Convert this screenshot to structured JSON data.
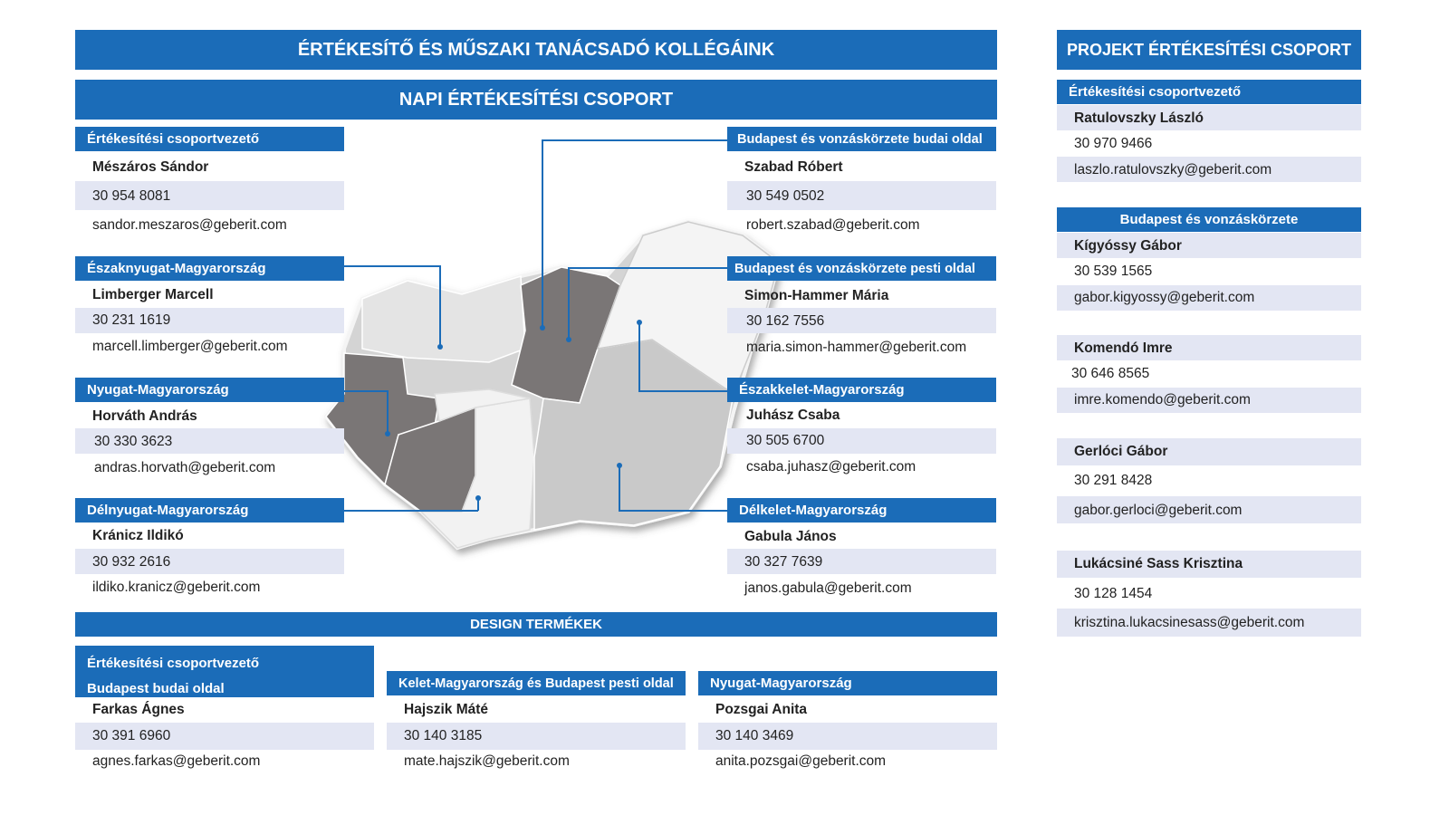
{
  "main_title": "ÉRTÉKESÍTŐ ÉS MŰSZAKI TANÁCSADÓ KOLLÉGÁINK",
  "daily": {
    "title": "NAPI ÉRTÉKESÍTÉSI CSOPORT",
    "cards": [
      {
        "region": "Értékesítési csoportvezető",
        "name": "Mészáros Sándor",
        "phone": "30 954 8081",
        "email": "sandor.meszaros@geberit.com"
      },
      {
        "region": "Északnyugat-Magyarország",
        "name": "Limberger Marcell",
        "phone": "30 231 1619",
        "email": "marcell.limberger@geberit.com"
      },
      {
        "region": "Nyugat-Magyarország",
        "name": "Horváth András",
        "phone": "30 330 3623",
        "email": "andras.horvath@geberit.com"
      },
      {
        "region": "Délnyugat-Magyarország",
        "name": "Kránicz Ildikó",
        "phone": "30 932 2616",
        "email": "ildiko.kranicz@geberit.com"
      },
      {
        "region": "Budapest és vonzáskörzete budai oldal",
        "name": "Szabad Róbert",
        "phone": "30 549 0502",
        "email": "robert.szabad@geberit.com"
      },
      {
        "region": "Budapest és vonzáskörzete pesti oldal",
        "name": "Simon-Hammer Mária",
        "phone": "30 162 7556",
        "email": "maria.simon-hammer@geberit.com"
      },
      {
        "region": "Északkelet-Magyarország",
        "name": "Juhász Csaba",
        "phone": "30 505 6700",
        "email": "csaba.juhasz@geberit.com"
      },
      {
        "region": "Délkelet-Magyarország",
        "name": "Gabula János",
        "phone": "30 327 7639",
        "email": "janos.gabula@geberit.com"
      }
    ]
  },
  "design": {
    "title": "DESIGN TERMÉKEK",
    "cards": [
      {
        "role": "Értékesítési csoportvezető",
        "region": "Budapest budai oldal",
        "name": "Farkas Ágnes",
        "phone": "30 391 6960",
        "email": "agnes.farkas@geberit.com"
      },
      {
        "region": "Kelet-Magyarország és Budapest pesti oldal",
        "name": "Hajszik Máté",
        "phone": "30 140 3185",
        "email": "mate.hajszik@geberit.com"
      },
      {
        "region": "Nyugat-Magyarország",
        "name": "Pozsgai Anita",
        "phone": "30 140 3469",
        "email": "anita.pozsgai@geberit.com"
      }
    ]
  },
  "project": {
    "title": "PROJEKT ÉRTÉKESÍTÉSI CSOPORT",
    "leader_label": "Értékesítési csoportvezető",
    "leader": {
      "name": "Ratulovszky László",
      "phone": "30 970 9466",
      "email": "laszlo.ratulovszky@geberit.com"
    },
    "budapest_label": "Budapest és vonzáskörzete",
    "members": [
      {
        "name": "Kígyóssy Gábor",
        "phone": "30 539 1565",
        "email": "gabor.kigyossy@geberit.com"
      },
      {
        "name": "Komendó Imre",
        "phone": "30 646 8565",
        "email": "imre.komendo@geberit.com"
      },
      {
        "name": "Gerlóci Gábor",
        "phone": "30 291 8428",
        "email": "gabor.gerloci@geberit.com"
      },
      {
        "name": "Lukácsiné Sass Krisztina",
        "phone": "30 128 1454",
        "email": "krisztina.lukacsinesass@geberit.com"
      }
    ]
  },
  "colors": {
    "brand_blue": "#1b6cb8",
    "row_band": "#e3e6f3",
    "map_dark": "#7a7676",
    "map_light": "#d9d9d9"
  },
  "map": {
    "type": "regional-map-hungary"
  }
}
